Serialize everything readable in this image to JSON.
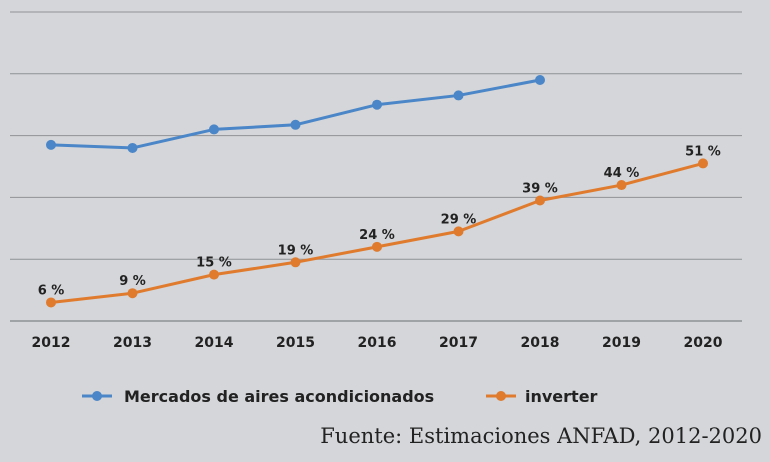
{
  "chart_data": {
    "type": "line",
    "categories": [
      "2012",
      "2013",
      "2014",
      "2015",
      "2016",
      "2017",
      "2018",
      "2019",
      "2020"
    ],
    "series": [
      {
        "name": "Mercados de aires acondicionados",
        "color": "#4a86c8",
        "values": [
          57,
          56,
          62,
          63.5,
          70,
          73,
          78,
          null,
          null
        ]
      },
      {
        "name": "inverter",
        "color": "#e07b2e",
        "values": [
          6,
          9,
          15,
          19,
          24,
          29,
          39,
          44,
          51
        ],
        "labels": [
          "6 %",
          "9 %",
          "15 %",
          "19 %",
          "24 %",
          "29 %",
          "39 %",
          "44 %",
          "51 %"
        ]
      }
    ],
    "ylim": [
      0,
      100
    ],
    "grid": true,
    "legend": "bottom"
  },
  "source": "Fuente: Estimaciones ANFAD, 2012-2020"
}
